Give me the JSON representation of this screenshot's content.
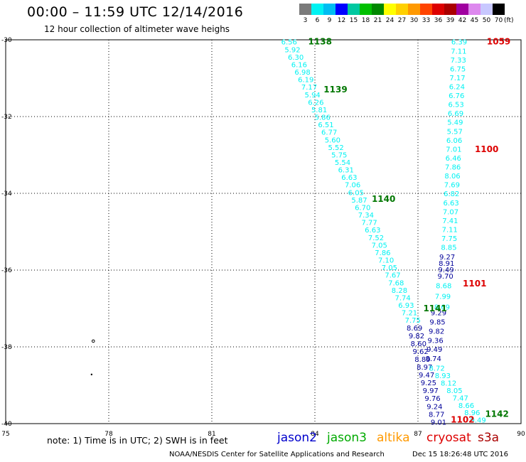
{
  "header": {
    "title": "00:00 – 11:59 UTC 12/14/2016",
    "subtitle": "12 hour collection of altimeter wave heighs"
  },
  "legend": {
    "swatches": [
      {
        "label": "3",
        "color": "#7a7a7a"
      },
      {
        "label": "6",
        "color": "#00f2f2"
      },
      {
        "label": "9",
        "color": "#00bdf2"
      },
      {
        "label": "12",
        "color": "#0000ff"
      },
      {
        "label": "15",
        "color": "#00c8a0"
      },
      {
        "label": "18",
        "color": "#00c000"
      },
      {
        "label": "21",
        "color": "#008800"
      },
      {
        "label": "24",
        "color": "#ffff00"
      },
      {
        "label": "27",
        "color": "#ffd000"
      },
      {
        "label": "30",
        "color": "#ff9900"
      },
      {
        "label": "33",
        "color": "#ff4400"
      },
      {
        "label": "36",
        "color": "#dd0000"
      },
      {
        "label": "39",
        "color": "#aa0000"
      },
      {
        "label": "42",
        "color": "#a000a0"
      },
      {
        "label": "45",
        "color": "#dd88ee"
      },
      {
        "label": "50",
        "color": "#c8c8ff"
      },
      {
        "label": "70",
        "color": "#000000"
      }
    ],
    "unit": "(ft)"
  },
  "map": {
    "lon_range": [
      75,
      90
    ],
    "lat_range": [
      -40,
      -30
    ],
    "lat_ticks": [
      "-30",
      "-32",
      "-34",
      "-36",
      "-38",
      "-40"
    ],
    "lon_ticks": [
      "75",
      "78",
      "81",
      "84",
      "87",
      "90"
    ],
    "colors": {
      "jason3": "#00f2f2",
      "jason2": "#000099",
      "track_label_green": "#007700",
      "track_label_red": "#dd0000"
    }
  },
  "track_labels": [
    {
      "text": "1138",
      "color": "#007700",
      "lon": 84.15,
      "lat": -30.05
    },
    {
      "text": "1139",
      "color": "#007700",
      "lon": 84.6,
      "lat": -31.3
    },
    {
      "text": "1140",
      "color": "#007700",
      "lon": 86.0,
      "lat": -34.15
    },
    {
      "text": "1141",
      "color": "#007700",
      "lon": 87.5,
      "lat": -37.0
    },
    {
      "text": "1142",
      "color": "#007700",
      "lon": 89.3,
      "lat": -39.75
    },
    {
      "text": "1059",
      "color": "#dd0000",
      "lon": 89.35,
      "lat": -30.05
    },
    {
      "text": "1100",
      "color": "#dd0000",
      "lon": 89.0,
      "lat": -32.85
    },
    {
      "text": "1101",
      "color": "#dd0000",
      "lon": 88.65,
      "lat": -36.35
    },
    {
      "text": "1102",
      "color": "#dd0000",
      "lon": 88.3,
      "lat": -39.9
    }
  ],
  "track_a": {
    "color": "#00f2f2",
    "lon_start": 83.25,
    "lat_start": -30.05,
    "lon_end": 86.85,
    "lat_end": -37.3,
    "values": [
      "6.56",
      "5.92",
      "6.30",
      "6.16",
      "6.98",
      "6.19",
      "7.17",
      "5.94",
      "6.26",
      "5.81",
      "5.86",
      "6.51",
      "6.77",
      "5.60",
      "5.52",
      "5.75",
      "5.54",
      "6.31",
      "6.63",
      "7.06",
      "6.05",
      "5.87",
      "6.70",
      "7.34",
      "7.77",
      "6.63",
      "7.52",
      "7.05",
      "7.86",
      "7.10",
      "7.05",
      "7.67",
      "7.68",
      "8.28",
      "7.74",
      "6.93",
      "7.21",
      "7.75"
    ]
  },
  "track_a_dark": {
    "color": "#000099",
    "lon_start": 86.9,
    "lat_start": -37.5,
    "lon_end": 87.6,
    "lat_end": -39.95,
    "values": [
      "8.69",
      "9.82",
      "8.60",
      "9.62",
      "8.89",
      "8.97",
      "9.47",
      "9.25",
      "9.97",
      "9.76",
      "9.24",
      "8.77",
      "9.01"
    ]
  },
  "track_b": {
    "color": "#00f2f2",
    "lon_start": 88.2,
    "lat_start": -30.05,
    "lon_end": 87.9,
    "lat_end": -35.4,
    "values": [
      "6.39",
      "7.11",
      "7.33",
      "6.75",
      "7.17",
      "6.24",
      "6.76",
      "6.53",
      "6.69",
      "5.49",
      "5.57",
      "6.06",
      "7.01",
      "6.46",
      "7.86",
      "8.06",
      "7.69",
      "6.82",
      "6.63",
      "7.07",
      "7.41",
      "7.11",
      "7.75",
      "8.85"
    ]
  },
  "track_b_dark": {
    "color": "#000099",
    "lon_start": 87.85,
    "lat_start": -35.65,
    "lon_end": 87.8,
    "lat_end": -36.15,
    "values": [
      "9.27",
      "8.91",
      "9.49",
      "9.70"
    ]
  },
  "track_b_lower": {
    "color": "#00f2f2",
    "lon_start": 87.75,
    "lat_start": -36.4,
    "lon_end": 87.7,
    "lat_end": -36.95,
    "values": [
      "8.68",
      "7.99",
      "8.69"
    ]
  },
  "track_b_lower_dark": {
    "color": "#000099",
    "lon_start": 87.6,
    "lat_start": -37.1,
    "lon_end": 87.45,
    "lat_end": -38.3,
    "values": [
      "9.29",
      "9.85",
      "9.82",
      "9.36",
      "9.49",
      "8.74"
    ]
  },
  "track_c": {
    "color": "#00f2f2",
    "lon_start": 87.55,
    "lat_start": -38.55,
    "lon_end": 88.75,
    "lat_end": -39.9,
    "values": [
      "8.72",
      "8.93",
      "8.12",
      "8.05",
      "7.47",
      "8.66",
      "8.96",
      "9.49"
    ]
  },
  "islands": [
    {
      "lon": 77.55,
      "lat": -37.85,
      "shape": "ring"
    },
    {
      "lon": 77.5,
      "lat": -38.72,
      "shape": "dot"
    }
  ],
  "footer": {
    "note": "note:  1) Time is in UTC;  2) SWH is in feet",
    "satellites": [
      {
        "name": "jason2",
        "color": "#0000cc"
      },
      {
        "name": "jason3",
        "color": "#00aa00"
      },
      {
        "name": "altika",
        "color": "#ff9900"
      },
      {
        "name": "cryosat",
        "color": "#dd0000"
      },
      {
        "name": "s3a",
        "color": "#aa0000"
      }
    ],
    "credit": "NOAA/NESDIS Center for Satellite Applications and Research",
    "timestamp": "Dec 15 18:26:48 UTC 2016"
  }
}
